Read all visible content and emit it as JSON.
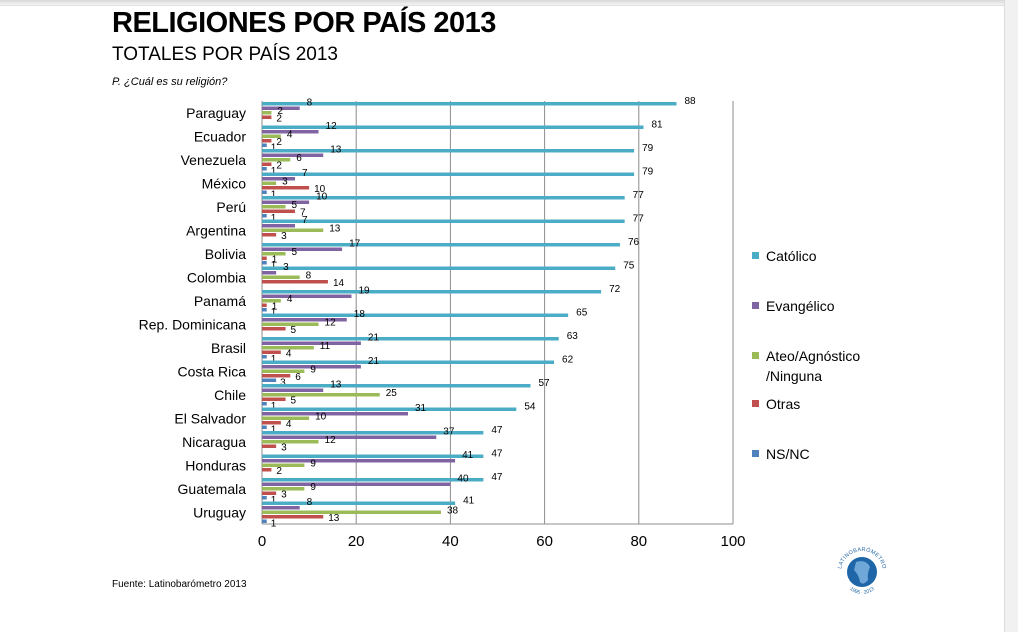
{
  "header": {
    "title": "RELIGIONES POR PAÍS 2013",
    "subtitle": "TOTALES POR PAÍS 2013",
    "question": "P. ¿Cuál  es su religión?"
  },
  "footer": {
    "source": "Fuente:  Latinobarómetro   2013"
  },
  "logo": {
    "label": "LATINOBARÓMETRO",
    "years": "1995 · 2013",
    "colors": {
      "primary": "#1f66a8",
      "secondary": "#6fa8d8"
    }
  },
  "chart_data": {
    "type": "bar",
    "orientation": "horizontal",
    "categories": [
      "Paraguay",
      "Ecuador",
      "Venezuela",
      "México",
      "Perú",
      "Argentina",
      "Bolivia",
      "Colombia",
      "Panamá",
      "Rep. Dominicana",
      "Brasil",
      "Costa Rica",
      "Chile",
      "El Salvador",
      "Nicaragua",
      "Honduras",
      "Guatemala",
      "Uruguay"
    ],
    "series": [
      {
        "name": "Católico",
        "color": "#4bacc6",
        "values": [
          88,
          81,
          79,
          79,
          77,
          77,
          76,
          75,
          72,
          65,
          63,
          62,
          57,
          54,
          47,
          47,
          47,
          41
        ]
      },
      {
        "name": "Evangélico",
        "color": "#8064a2",
        "values": [
          8,
          12,
          13,
          7,
          10,
          7,
          17,
          3,
          19,
          18,
          21,
          21,
          13,
          31,
          37,
          41,
          40,
          8
        ]
      },
      {
        "name": "Ateo/Agnóstico /Ninguna",
        "color": "#9bbb59",
        "values": [
          2,
          4,
          6,
          3,
          5,
          13,
          5,
          8,
          4,
          12,
          11,
          9,
          25,
          10,
          12,
          9,
          9,
          38
        ]
      },
      {
        "name": "Otras",
        "color": "#c0504d",
        "values": [
          2,
          2,
          2,
          10,
          7,
          3,
          1,
          14,
          1,
          5,
          4,
          6,
          5,
          4,
          3,
          2,
          3,
          13
        ]
      },
      {
        "name": "NS/NC",
        "color": "#4f81bd",
        "values": [
          null,
          1,
          1,
          1,
          1,
          null,
          1,
          null,
          1,
          null,
          1,
          3,
          1,
          1,
          null,
          null,
          1,
          1
        ]
      }
    ],
    "xlim": [
      0,
      100
    ],
    "xticks": [
      0,
      20,
      40,
      60,
      80,
      100
    ],
    "grid": true,
    "legend_position": "right"
  }
}
